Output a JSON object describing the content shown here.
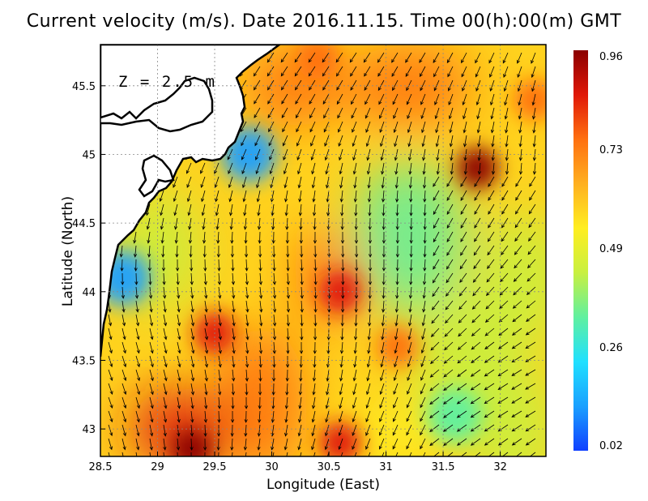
{
  "chart_data": {
    "type": "heatmap",
    "title": "Current velocity (m/s). Date 2016.11.15. Time 00(h):00(m) GMT",
    "xlabel": "Longitude (East)",
    "ylabel": "Latitude (North)",
    "annotation": "Z = 2.5 m",
    "xlim": [
      28.5,
      32.4
    ],
    "ylim": [
      42.8,
      45.8
    ],
    "x_ticks": [
      "28.5",
      "29",
      "29.5",
      "30",
      "30.5",
      "31",
      "31.5",
      "32"
    ],
    "y_ticks": [
      "43",
      "43.5",
      "44",
      "44.5",
      "45",
      "45.5"
    ],
    "grid": true,
    "colorbar": {
      "ticks": [
        "0.96",
        "0.73",
        "0.49",
        "0.26",
        "0.02"
      ],
      "min": 0.02,
      "max": 0.96,
      "colors": [
        "#1040ff",
        "#1aa0ff",
        "#20e0ff",
        "#60f0a0",
        "#c8f040",
        "#ffee20",
        "#ffb020",
        "#ff7010",
        "#e01808",
        "#8b0000"
      ]
    },
    "speed_hotspots": [
      {
        "lon": 31.8,
        "lat": 44.9,
        "speed": 0.96
      },
      {
        "lon": 29.3,
        "lat": 42.85,
        "speed": 0.92
      },
      {
        "lon": 30.6,
        "lat": 42.9,
        "speed": 0.88
      },
      {
        "lon": 30.6,
        "lat": 44.0,
        "speed": 0.82
      },
      {
        "lon": 31.1,
        "lat": 43.6,
        "speed": 0.8
      },
      {
        "lon": 29.5,
        "lat": 43.7,
        "speed": 0.82
      },
      {
        "lon": 30.4,
        "lat": 45.7,
        "speed": 0.78
      },
      {
        "lon": 32.3,
        "lat": 45.4,
        "speed": 0.78
      },
      {
        "lon": 31.6,
        "lat": 43.1,
        "speed": 0.3
      },
      {
        "lon": 29.8,
        "lat": 45.0,
        "speed": 0.12
      },
      {
        "lon": 28.7,
        "lat": 44.1,
        "speed": 0.15
      }
    ]
  }
}
